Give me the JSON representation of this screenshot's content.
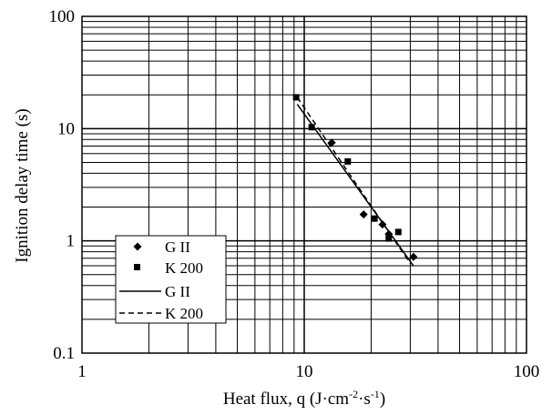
{
  "chart_data": {
    "type": "scatter",
    "x_scale": "log",
    "y_scale": "log",
    "xlim": [
      1,
      100
    ],
    "ylim": [
      0.1,
      100
    ],
    "xlabel_main": "Heat flux, q (J·cm",
    "xlabel_sup1": "-2",
    "xlabel_mid": "·s",
    "xlabel_sup2": "-1",
    "xlabel_end": ")",
    "ylabel": "Ignition delay time (s)",
    "x_ticks": [
      "1",
      "10",
      "100"
    ],
    "y_ticks": [
      "0.1",
      "1",
      "10",
      "100"
    ],
    "grid": true,
    "legend_position": "lower-left",
    "series": [
      {
        "name": "G II",
        "kind": "points",
        "marker": "diamond",
        "points": [
          [
            13.3,
            7.5
          ],
          [
            18.5,
            1.72
          ],
          [
            22.5,
            1.4
          ],
          [
            24.0,
            1.15
          ],
          [
            31.0,
            0.72
          ]
        ]
      },
      {
        "name": "K 200",
        "kind": "points",
        "marker": "square",
        "points": [
          [
            9.2,
            19.0
          ],
          [
            10.8,
            10.3
          ],
          [
            15.7,
            5.1
          ],
          [
            20.7,
            1.58
          ],
          [
            24.0,
            1.05
          ],
          [
            26.5,
            1.2
          ]
        ]
      },
      {
        "name": "G II",
        "kind": "line",
        "style": "solid",
        "points": [
          [
            9.3,
            16.5
          ],
          [
            31.0,
            0.6
          ]
        ]
      },
      {
        "name": "K 200",
        "kind": "line",
        "style": "dashed",
        "points": [
          [
            9.3,
            19.0
          ],
          [
            30.0,
            0.63
          ]
        ]
      }
    ]
  }
}
